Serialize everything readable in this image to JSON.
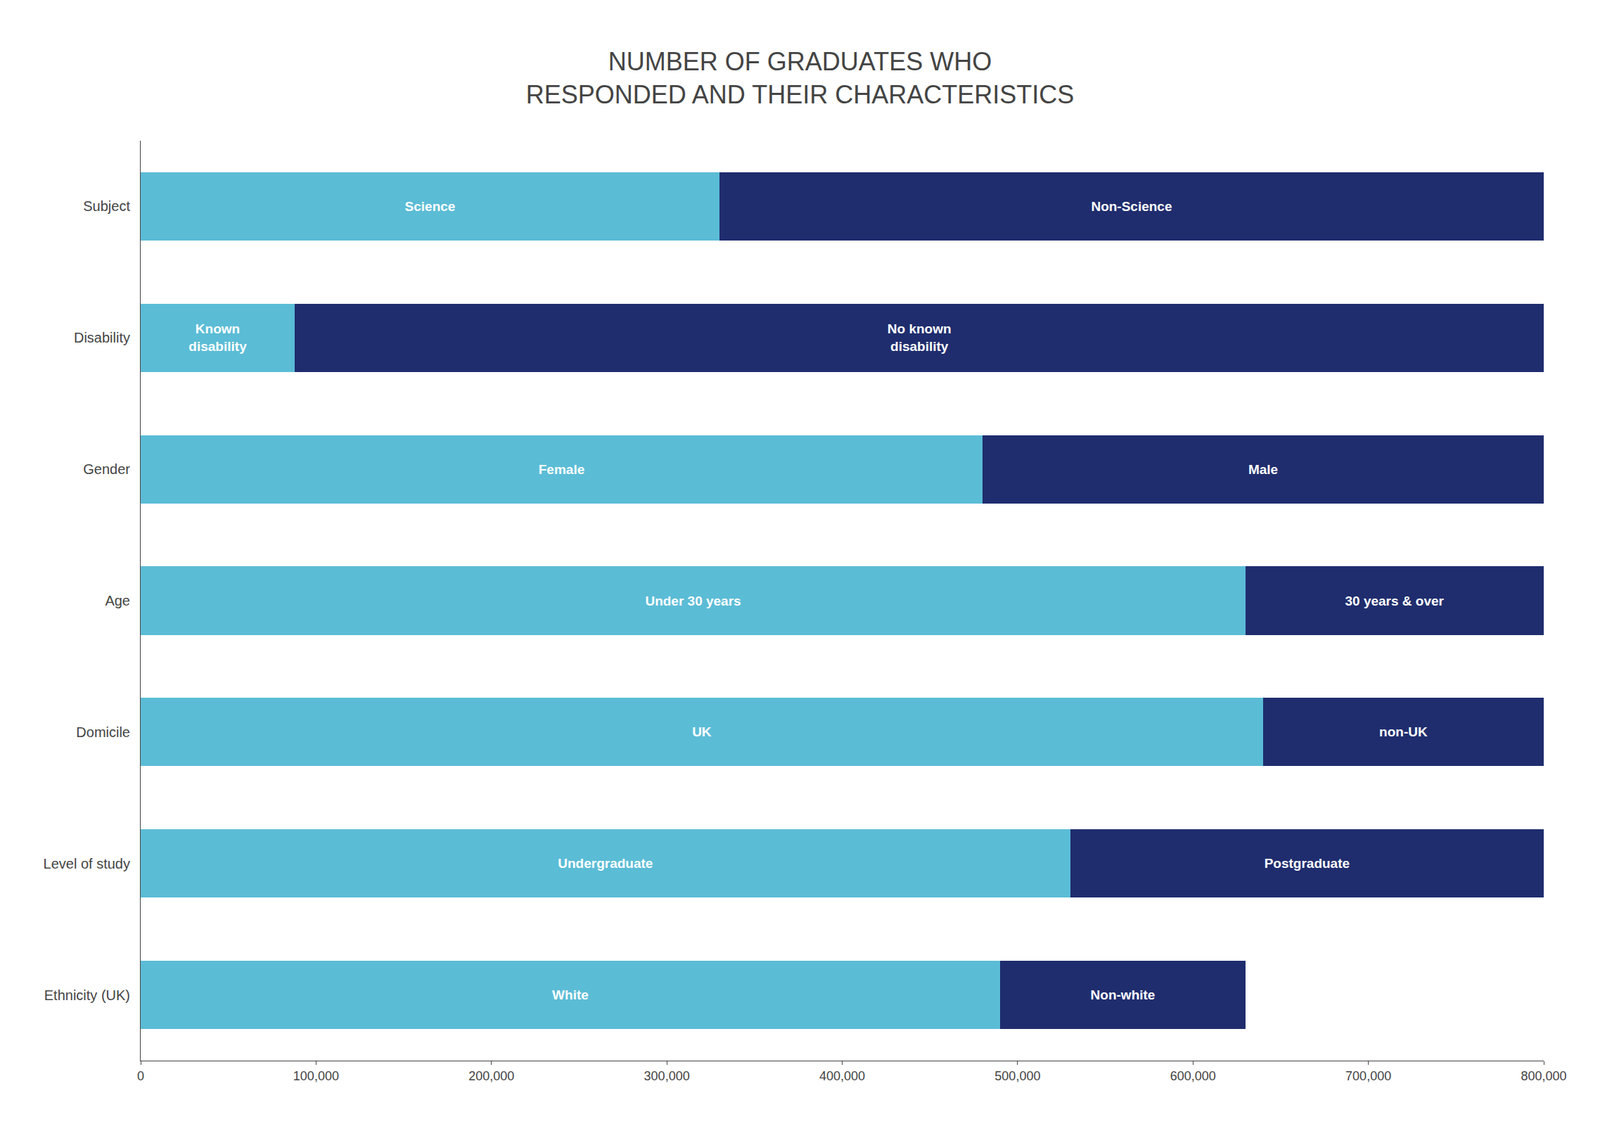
{
  "chart_data": {
    "type": "bar",
    "orientation": "horizontal",
    "stacked": true,
    "title": "NUMBER OF GRADUATES WHO\nRESPONDED AND THEIR CHARACTERISTICS",
    "categories": [
      "Subject",
      "Disability",
      "Gender",
      "Age",
      "Domicile",
      "Level of study",
      "Ethnicity (UK)"
    ],
    "series": [
      {
        "color": "#5bbcd6",
        "values": [
          330000,
          88000,
          480000,
          630000,
          640000,
          530000,
          490000
        ],
        "labels": [
          "Science",
          "Known\ndisability",
          "Female",
          "Under 30 years",
          "UK",
          "Undergraduate",
          "White"
        ]
      },
      {
        "color": "#1f2d6e",
        "values": [
          470000,
          712000,
          320000,
          170000,
          160000,
          270000,
          140000
        ],
        "labels": [
          "Non-Science",
          "No known\ndisability",
          "Male",
          "30 years & over",
          "non-UK",
          "Postgraduate",
          "Non-white"
        ]
      }
    ],
    "xlim": [
      0,
      800000
    ],
    "xticks": [
      0,
      {
        "value": 100000,
        "label": "100,000"
      },
      {
        "value": 200000,
        "label": "200,000"
      },
      {
        "value": 300000,
        "label": "300,000"
      },
      {
        "value": 400000,
        "label": "400,000"
      },
      {
        "value": 500000,
        "label": "500,000"
      },
      {
        "value": 600000,
        "label": "600,000"
      },
      {
        "value": 700000,
        "label": "700,000"
      },
      {
        "value": 800000,
        "label": "800,000"
      }
    ],
    "grid": false
  }
}
